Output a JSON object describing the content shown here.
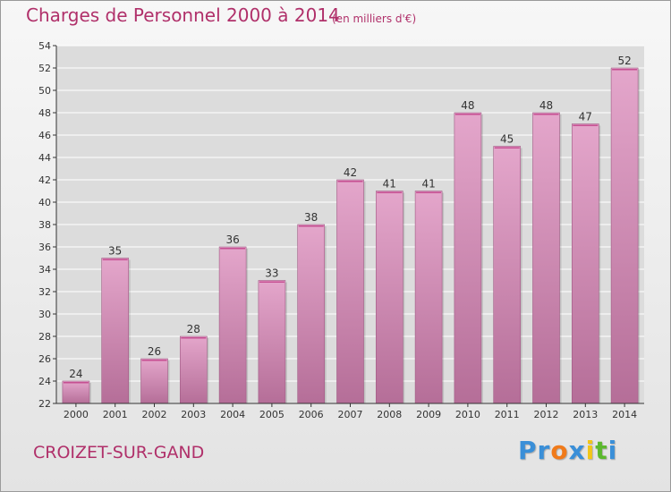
{
  "title": "Charges de Personnel 2000 à 2014",
  "subtitle": "(en milliers d'€)",
  "commune": "CROIZET-SUR-GAND",
  "logo": {
    "letters": [
      "P",
      "r",
      "o",
      "x",
      "i",
      "t",
      "i"
    ],
    "colors": [
      "#3a8fd8",
      "#3a8fd8",
      "#f07a1a",
      "#3a8fd8",
      "#f2c618",
      "#5cb82e",
      "#3a8fd8"
    ]
  },
  "colors": {
    "bar_top": "#e4a6cb",
    "bar_bottom": "#b56e98",
    "axis": "#333333",
    "grid": "#ffffff"
  },
  "chart_data": {
    "type": "bar",
    "categories": [
      "2000",
      "2001",
      "2002",
      "2003",
      "2004",
      "2005",
      "2006",
      "2007",
      "2008",
      "2009",
      "2010",
      "2011",
      "2012",
      "2013",
      "2014"
    ],
    "values": [
      24,
      35,
      26,
      28,
      36,
      33,
      38,
      42,
      41,
      41,
      48,
      45,
      48,
      47,
      52
    ],
    "ylim": [
      22,
      54
    ],
    "yticks": [
      22,
      24,
      26,
      28,
      30,
      32,
      34,
      36,
      38,
      40,
      42,
      44,
      46,
      48,
      50,
      52,
      54
    ],
    "grid": true,
    "data_labels": true
  }
}
